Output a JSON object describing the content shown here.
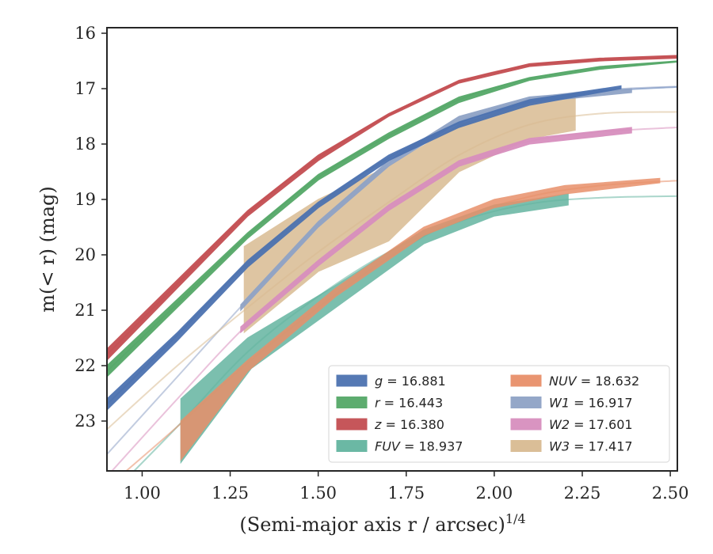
{
  "chart_data": {
    "type": "line",
    "xlabel": "(Semi-major axis r / arcsec)",
    "xlabel_sup": "1/4",
    "ylabel": "m(< r) (mag)",
    "xlim": [
      0.9,
      2.52
    ],
    "ylim": [
      23.9,
      15.9
    ],
    "y_inverted": true,
    "x_ticks": [
      1.0,
      1.25,
      1.5,
      1.75,
      2.0,
      2.25,
      2.5
    ],
    "x_tick_labels": [
      "1.00",
      "1.25",
      "1.50",
      "1.75",
      "2.00",
      "2.25",
      "2.50"
    ],
    "y_ticks": [
      16,
      17,
      18,
      19,
      20,
      21,
      22,
      23
    ],
    "y_tick_labels": [
      "16",
      "17",
      "18",
      "19",
      "20",
      "21",
      "22",
      "23"
    ],
    "grid": false,
    "legend_position": "lower-right",
    "series": [
      {
        "id": "g",
        "name": "g",
        "value": "16.881",
        "color": "#4c72b0",
        "band_upper": [
          [
            0.9,
            22.6
          ],
          [
            1.1,
            21.4
          ],
          [
            1.3,
            20.1
          ],
          [
            1.5,
            19.05
          ],
          [
            1.7,
            18.2
          ],
          [
            1.9,
            17.6
          ],
          [
            2.1,
            17.2
          ],
          [
            2.36,
            16.95
          ]
        ],
        "band_lower": [
          [
            0.9,
            22.8
          ],
          [
            1.1,
            21.55
          ],
          [
            1.3,
            20.22
          ],
          [
            1.5,
            19.15
          ],
          [
            1.7,
            18.3
          ],
          [
            1.9,
            17.7
          ],
          [
            2.1,
            17.3
          ],
          [
            2.36,
            17.0
          ]
        ],
        "model": [
          [
            0.9,
            22.7
          ],
          [
            1.1,
            21.45
          ],
          [
            1.3,
            20.15
          ],
          [
            1.5,
            19.1
          ],
          [
            1.7,
            18.25
          ],
          [
            1.9,
            17.62
          ],
          [
            2.1,
            17.24
          ],
          [
            2.3,
            17.05
          ],
          [
            2.52,
            16.97
          ]
        ]
      },
      {
        "id": "r",
        "name": "r",
        "value": "16.443",
        "color": "#55a868",
        "band_upper": [
          [
            0.9,
            22.0
          ],
          [
            1.1,
            20.8
          ],
          [
            1.3,
            19.6
          ],
          [
            1.5,
            18.55
          ],
          [
            1.7,
            17.8
          ],
          [
            1.9,
            17.15
          ],
          [
            2.1,
            16.8
          ],
          [
            2.3,
            16.6
          ],
          [
            2.52,
            16.5
          ]
        ],
        "band_lower": [
          [
            0.9,
            22.2
          ],
          [
            1.1,
            20.95
          ],
          [
            1.3,
            19.7
          ],
          [
            1.5,
            18.65
          ],
          [
            1.7,
            17.9
          ],
          [
            1.9,
            17.25
          ],
          [
            2.1,
            16.85
          ],
          [
            2.3,
            16.65
          ],
          [
            2.52,
            16.52
          ]
        ],
        "model": [
          [
            0.9,
            22.1
          ],
          [
            1.1,
            20.88
          ],
          [
            1.3,
            19.65
          ],
          [
            1.5,
            18.6
          ],
          [
            1.7,
            17.85
          ],
          [
            1.9,
            17.2
          ],
          [
            2.1,
            16.82
          ],
          [
            2.3,
            16.62
          ],
          [
            2.52,
            16.51
          ]
        ]
      },
      {
        "id": "z",
        "name": "z",
        "value": "16.380",
        "color": "#c44e52",
        "band_upper": [
          [
            0.9,
            21.7
          ],
          [
            1.1,
            20.45
          ],
          [
            1.3,
            19.2
          ],
          [
            1.5,
            18.2
          ],
          [
            1.7,
            17.45
          ],
          [
            1.9,
            16.85
          ],
          [
            2.1,
            16.55
          ],
          [
            2.3,
            16.45
          ],
          [
            2.52,
            16.4
          ]
        ],
        "band_lower": [
          [
            0.9,
            21.9
          ],
          [
            1.1,
            20.6
          ],
          [
            1.3,
            19.3
          ],
          [
            1.5,
            18.3
          ],
          [
            1.7,
            17.5
          ],
          [
            1.9,
            16.9
          ],
          [
            2.1,
            16.6
          ],
          [
            2.3,
            16.5
          ],
          [
            2.52,
            16.45
          ]
        ],
        "model": [
          [
            0.9,
            21.8
          ],
          [
            1.1,
            20.52
          ],
          [
            1.3,
            19.25
          ],
          [
            1.5,
            18.25
          ],
          [
            1.7,
            17.48
          ],
          [
            1.9,
            16.88
          ],
          [
            2.1,
            16.58
          ],
          [
            2.3,
            16.48
          ],
          [
            2.52,
            16.42
          ]
        ]
      },
      {
        "id": "FUV",
        "name": "FUV",
        "value": "18.937",
        "color": "#64b5a0",
        "band_upper": [
          [
            1.11,
            22.6
          ],
          [
            1.3,
            21.5
          ],
          [
            1.55,
            20.55
          ],
          [
            1.8,
            19.55
          ],
          [
            2.0,
            19.1
          ],
          [
            2.21,
            18.9
          ]
        ],
        "band_lower": [
          [
            1.11,
            23.75
          ],
          [
            1.31,
            22.05
          ],
          [
            1.55,
            20.95
          ],
          [
            1.8,
            19.8
          ],
          [
            2.0,
            19.3
          ],
          [
            2.21,
            19.1
          ]
        ],
        "model": [
          [
            0.9,
            24.4
          ],
          [
            1.1,
            23.1
          ],
          [
            1.3,
            21.75
          ],
          [
            1.5,
            20.75
          ],
          [
            1.7,
            19.95
          ],
          [
            1.9,
            19.4
          ],
          [
            2.1,
            19.08
          ],
          [
            2.3,
            18.97
          ],
          [
            2.52,
            18.94
          ]
        ]
      },
      {
        "id": "NUV",
        "name": "NUV",
        "value": "18.632",
        "color": "#e8906a",
        "band_upper": [
          [
            1.11,
            23.0
          ],
          [
            1.3,
            21.9
          ],
          [
            1.55,
            20.6
          ],
          [
            1.8,
            19.5
          ],
          [
            2.0,
            19.0
          ],
          [
            2.2,
            18.75
          ],
          [
            2.47,
            18.62
          ]
        ],
        "band_lower": [
          [
            1.11,
            23.7
          ],
          [
            1.3,
            22.1
          ],
          [
            1.55,
            20.75
          ],
          [
            1.8,
            19.65
          ],
          [
            2.0,
            19.15
          ],
          [
            2.2,
            18.9
          ],
          [
            2.47,
            18.7
          ]
        ],
        "model": [
          [
            0.9,
            24.2
          ],
          [
            1.1,
            23.1
          ],
          [
            1.3,
            21.95
          ],
          [
            1.5,
            20.95
          ],
          [
            1.7,
            20.05
          ],
          [
            1.9,
            19.35
          ],
          [
            2.1,
            18.95
          ],
          [
            2.3,
            18.75
          ],
          [
            2.52,
            18.66
          ]
        ]
      },
      {
        "id": "W1",
        "name": "W1",
        "value": "16.917",
        "color": "#8fa3c6",
        "band_upper": [
          [
            1.28,
            20.9
          ],
          [
            1.5,
            19.4
          ],
          [
            1.7,
            18.3
          ],
          [
            1.9,
            17.5
          ],
          [
            2.1,
            17.15
          ],
          [
            2.39,
            17.0
          ]
        ],
        "band_lower": [
          [
            1.28,
            21.0
          ],
          [
            1.5,
            19.5
          ],
          [
            1.7,
            18.4
          ],
          [
            1.9,
            17.6
          ],
          [
            2.1,
            17.25
          ],
          [
            2.39,
            17.07
          ]
        ],
        "model": [
          [
            0.9,
            23.6
          ],
          [
            1.1,
            22.2
          ],
          [
            1.3,
            20.8
          ],
          [
            1.5,
            19.45
          ],
          [
            1.7,
            18.35
          ],
          [
            1.9,
            17.6
          ],
          [
            2.1,
            17.2
          ],
          [
            2.3,
            17.03
          ],
          [
            2.52,
            16.96
          ]
        ]
      },
      {
        "id": "W2",
        "name": "W2",
        "value": "17.601",
        "color": "#d88fbe",
        "band_upper": [
          [
            1.28,
            21.3
          ],
          [
            1.5,
            20.1
          ],
          [
            1.7,
            19.1
          ],
          [
            1.9,
            18.3
          ],
          [
            2.1,
            17.9
          ],
          [
            2.39,
            17.7
          ]
        ],
        "band_lower": [
          [
            1.28,
            21.4
          ],
          [
            1.5,
            20.2
          ],
          [
            1.7,
            19.2
          ],
          [
            1.9,
            18.4
          ],
          [
            2.1,
            18.0
          ],
          [
            2.39,
            17.8
          ]
        ],
        "model": [
          [
            0.9,
            24.0
          ],
          [
            1.1,
            22.6
          ],
          [
            1.3,
            21.25
          ],
          [
            1.5,
            20.15
          ],
          [
            1.7,
            19.15
          ],
          [
            1.9,
            18.35
          ],
          [
            2.1,
            17.95
          ],
          [
            2.3,
            17.78
          ],
          [
            2.52,
            17.7
          ]
        ]
      },
      {
        "id": "W3",
        "name": "W3",
        "value": "17.417",
        "color": "#d9bb92",
        "band_upper": [
          [
            1.29,
            19.85
          ],
          [
            1.5,
            19.0
          ],
          [
            1.7,
            18.4
          ],
          [
            1.9,
            17.65
          ],
          [
            2.1,
            17.25
          ],
          [
            2.23,
            17.1
          ]
        ],
        "band_lower": [
          [
            1.29,
            21.4
          ],
          [
            1.5,
            20.3
          ],
          [
            1.7,
            19.75
          ],
          [
            1.9,
            18.5
          ],
          [
            2.1,
            17.9
          ],
          [
            2.23,
            17.75
          ]
        ],
        "model": [
          [
            0.9,
            23.15
          ],
          [
            1.1,
            22.0
          ],
          [
            1.3,
            20.95
          ],
          [
            1.5,
            19.95
          ],
          [
            1.7,
            19.05
          ],
          [
            1.9,
            18.2
          ],
          [
            2.1,
            17.65
          ],
          [
            2.3,
            17.45
          ],
          [
            2.52,
            17.42
          ]
        ]
      }
    ]
  }
}
